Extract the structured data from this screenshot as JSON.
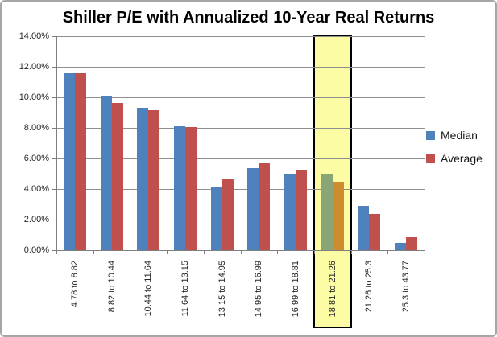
{
  "chart_data": {
    "type": "bar",
    "title": "Shiller P/E with Annualized 10-Year Real Returns",
    "categories": [
      "4.78 to 8.82",
      "8.82 to 10.44",
      "10.44 to 11.64",
      "11.64 to 13.15",
      "13.15 to 14.95",
      "14.95 to 16.99",
      "16.99 to 18.81",
      "18.81 to 21.26",
      "21.26 to 25.3",
      "25.3 to 43.77"
    ],
    "series": [
      {
        "name": "Median",
        "color": "#4F81BD",
        "values": [
          11.6,
          10.1,
          9.3,
          8.1,
          4.1,
          5.35,
          5.0,
          5.0,
          2.9,
          0.5
        ]
      },
      {
        "name": "Average",
        "color": "#C0504D",
        "values": [
          11.6,
          9.65,
          9.15,
          8.05,
          4.7,
          5.7,
          5.25,
          4.5,
          2.35,
          0.85
        ]
      }
    ],
    "xlabel": "",
    "ylabel": "",
    "ylim": [
      0,
      14
    ],
    "yticks": {
      "values": [
        0,
        2,
        4,
        6,
        8,
        10,
        12,
        14
      ],
      "labels": [
        "0.00%",
        "2.00%",
        "4.00%",
        "6.00%",
        "8.00%",
        "10.00%",
        "12.00%",
        "14.00%"
      ]
    },
    "grid": true,
    "legend_position": "right",
    "legend_entries": [
      "Median",
      "Average"
    ],
    "highlight": {
      "category": "18.81 to 21.26",
      "category_index": 7,
      "fill": "#FCFCA5",
      "border_color": "#000000",
      "series_colors": [
        "#8AA677",
        "#CE8C2F"
      ]
    },
    "colors": {
      "gridline": "#8F8F8F",
      "axis": "#7F7F7F",
      "text": "#262626",
      "outer_border": "#A6A6A6",
      "background": "#FFFFFF"
    }
  }
}
